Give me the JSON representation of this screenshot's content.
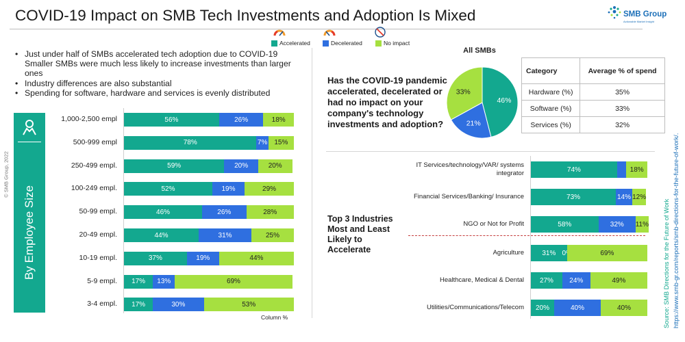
{
  "title": "COVID-19 Impact on SMB Tech Investments and Adoption Is Mixed",
  "logo": {
    "name": "SMB Group",
    "tagline": "Actionable Market Insight"
  },
  "legend": [
    {
      "label": "Accelerated",
      "color": "#13a88f",
      "icon": "gauge-high-icon"
    },
    {
      "label": "Decelerated",
      "color": "#2f6fe0",
      "icon": "gauge-low-icon"
    },
    {
      "label": "No impact",
      "color": "#a6e040",
      "icon": "no-gauge-icon"
    }
  ],
  "bullets": [
    {
      "text": "Just under half of SMBs accelerated tech adoption due to COVID-19",
      "bullet": true
    },
    {
      "text": "Smaller SMBs were much less likely to increase investments than larger ones",
      "bullet": false
    },
    {
      "text": "Industry differences are also substantial",
      "bullet": true
    },
    {
      "text": "Spending for software, hardware and services is evenly distributed",
      "bullet": true
    }
  ],
  "side_label": "By Employee Size",
  "copyright": "© SMB Group, 2022",
  "question": "Has the COVID-19 pandemic accelerated, decelerated or had no impact on your company's technology investments and adoption?",
  "pie_title": "All SMBs",
  "table": {
    "headers": [
      "Category",
      "Average % of spend"
    ],
    "rows": [
      {
        "category": "Hardware (%)",
        "value": "35%"
      },
      {
        "category": "Software (%)",
        "value": "33%"
      },
      {
        "category": "Services (%)",
        "value": "32%"
      }
    ]
  },
  "top3_label": "Top 3 Industries Most and Least Likely to Accelerate",
  "column_caption": "Column %",
  "source_lines": [
    "Source:  SMB Directions for the Future of Work",
    "https://www.smb-gr.com/reports/smb-directions-for-the-future-of-work/."
  ],
  "chart_data": [
    {
      "type": "bar",
      "orientation": "horizontal-stacked-100",
      "categories": [
        "1,000-2,500 empl",
        "500-999 empl",
        "250-499 empl.",
        "100-249 empl.",
        "50-99 empl.",
        "20-49 empl.",
        "10-19 empl.",
        "5-9 empl.",
        "3-4 empl."
      ],
      "series": [
        {
          "name": "Accelerated",
          "values": [
            56,
            78,
            59,
            52,
            46,
            44,
            37,
            17,
            17
          ]
        },
        {
          "name": "Decelerated",
          "values": [
            26,
            7,
            20,
            19,
            26,
            31,
            19,
            13,
            30
          ]
        },
        {
          "name": "No impact",
          "values": [
            18,
            15,
            20,
            29,
            28,
            25,
            44,
            69,
            53
          ]
        }
      ],
      "xlabel": "Column %"
    },
    {
      "type": "pie",
      "labels": [
        "Accelerated",
        "Decelerated",
        "No impact"
      ],
      "values": [
        46,
        21,
        33
      ],
      "title": "All SMBs"
    },
    {
      "type": "bar",
      "orientation": "horizontal-stacked-100",
      "categories": [
        "IT Services/technology/VAR/ systems integrator",
        "Financial Services/Banking/ Insurance",
        "NGO or Not for Profit",
        "Agriculture",
        "Healthcare, Medical & Dental",
        "Utilities/Communications/Telecom"
      ],
      "series": [
        {
          "name": "Accelerated",
          "values": [
            74,
            73,
            58,
            31,
            27,
            20
          ]
        },
        {
          "name": "Decelerated",
          "values": [
            8,
            14,
            32,
            0,
            24,
            40
          ]
        },
        {
          "name": "No impact",
          "values": [
            18,
            12,
            11,
            69,
            49,
            40
          ]
        }
      ],
      "value_labels": [
        [
          "74%",
          "",
          "18%"
        ],
        [
          "73%",
          "14%",
          "12%"
        ],
        [
          "58%",
          "32%",
          "11%"
        ],
        [
          "31%",
          "0%",
          "69%"
        ],
        [
          "27%",
          "24%",
          "49%"
        ],
        [
          "20%",
          "40%",
          "40%"
        ]
      ]
    }
  ]
}
